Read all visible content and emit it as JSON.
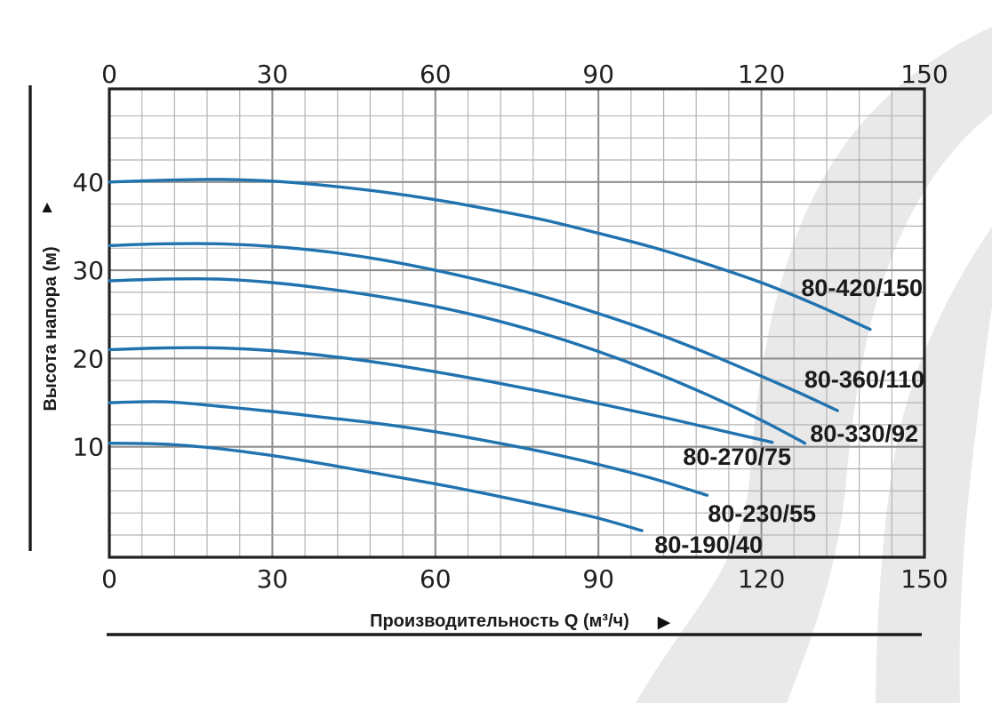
{
  "colors": {
    "curve": "#2173b0",
    "watermark": "#e9e9e9",
    "grid_minor": "#b4b4b4",
    "grid_major": "#8f8f8f",
    "text": "#1b1b1b"
  },
  "y_axis": {
    "title": "Высота напора (м)",
    "arrow": "▲"
  },
  "x_axis": {
    "title": "Производительность Q (м³/ч)",
    "arrow": "▶"
  },
  "chart_data": {
    "type": "line",
    "title": "",
    "xlabel": "Производительность Q (м³/ч)",
    "ylabel": "Высота напора (м)",
    "xlim": [
      0,
      150
    ],
    "ylim": [
      -2.5,
      50.5
    ],
    "x_ticks": [
      0,
      30,
      60,
      90,
      120,
      150
    ],
    "y_ticks": [
      10,
      20,
      30,
      40
    ],
    "x_minor_step": 6,
    "x_major_step": 30,
    "y_minor_step": 2.5,
    "y_major_step": 10,
    "grid": "minor and major, on",
    "legend_position": "labels at right end of each curve",
    "series": [
      {
        "label": "80-420/150",
        "points": [
          [
            0,
            40
          ],
          [
            10,
            40.2
          ],
          [
            20,
            40.3
          ],
          [
            30,
            40.1
          ],
          [
            40,
            39.6
          ],
          [
            50,
            38.9
          ],
          [
            60,
            38
          ],
          [
            70,
            36.9
          ],
          [
            80,
            35.7
          ],
          [
            90,
            34.2
          ],
          [
            100,
            32.6
          ],
          [
            110,
            30.7
          ],
          [
            120,
            28.6
          ],
          [
            130,
            26.1
          ],
          [
            140,
            23.3
          ]
        ]
      },
      {
        "label": "80-360/110",
        "points": [
          [
            0,
            32.8
          ],
          [
            10,
            33
          ],
          [
            20,
            33
          ],
          [
            30,
            32.7
          ],
          [
            40,
            32.1
          ],
          [
            50,
            31.2
          ],
          [
            60,
            30
          ],
          [
            70,
            28.6
          ],
          [
            80,
            27
          ],
          [
            90,
            25.1
          ],
          [
            100,
            23
          ],
          [
            110,
            20.6
          ],
          [
            120,
            18
          ],
          [
            127,
            16.1
          ],
          [
            134,
            14.1
          ]
        ]
      },
      {
        "label": "80-330/92",
        "points": [
          [
            0,
            28.8
          ],
          [
            10,
            29
          ],
          [
            20,
            29
          ],
          [
            30,
            28.6
          ],
          [
            40,
            27.9
          ],
          [
            50,
            27
          ],
          [
            60,
            25.9
          ],
          [
            70,
            24.5
          ],
          [
            80,
            22.8
          ],
          [
            90,
            20.8
          ],
          [
            100,
            18.5
          ],
          [
            110,
            15.9
          ],
          [
            120,
            13
          ],
          [
            128,
            10.4
          ]
        ]
      },
      {
        "label": "80-270/75",
        "points": [
          [
            0,
            21
          ],
          [
            10,
            21.2
          ],
          [
            20,
            21.2
          ],
          [
            30,
            20.9
          ],
          [
            40,
            20.3
          ],
          [
            50,
            19.5
          ],
          [
            60,
            18.5
          ],
          [
            70,
            17.4
          ],
          [
            80,
            16.2
          ],
          [
            90,
            14.9
          ],
          [
            100,
            13.6
          ],
          [
            110,
            12.2
          ],
          [
            122,
            10.5
          ]
        ]
      },
      {
        "label": "80-230/55",
        "points": [
          [
            0,
            15
          ],
          [
            10,
            15.1
          ],
          [
            20,
            14.6
          ],
          [
            30,
            14
          ],
          [
            40,
            13.3
          ],
          [
            50,
            12.6
          ],
          [
            60,
            11.7
          ],
          [
            70,
            10.6
          ],
          [
            80,
            9.4
          ],
          [
            90,
            8
          ],
          [
            100,
            6.4
          ],
          [
            110,
            4.5
          ]
        ]
      },
      {
        "label": "80-190/40",
        "points": [
          [
            0,
            10.4
          ],
          [
            10,
            10.3
          ],
          [
            20,
            9.8
          ],
          [
            30,
            9
          ],
          [
            40,
            8
          ],
          [
            50,
            6.9
          ],
          [
            60,
            5.8
          ],
          [
            70,
            4.6
          ],
          [
            80,
            3.3
          ],
          [
            90,
            1.9
          ],
          [
            98,
            0.5
          ]
        ]
      }
    ]
  }
}
